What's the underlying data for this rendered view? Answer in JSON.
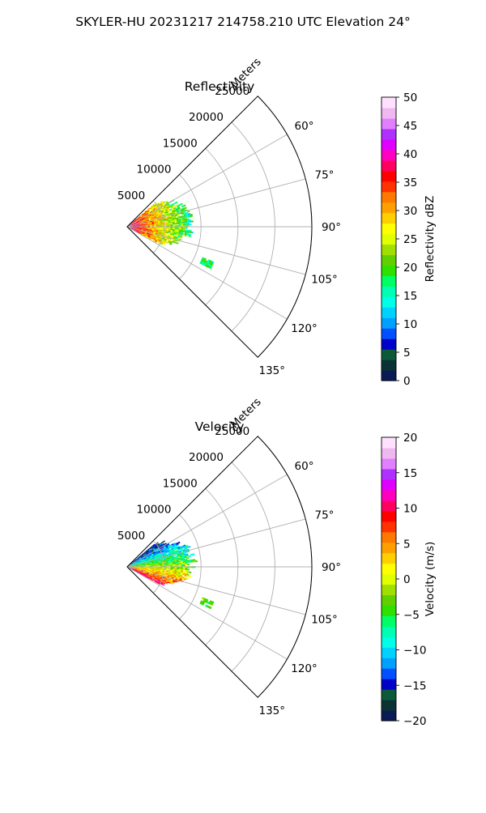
{
  "figure": {
    "suptitle": "SKYLER-HU  20231217  214758.210 UTC Elevation 24°"
  },
  "chart_data": [
    {
      "type": "heatmap",
      "projection": "polar-sector",
      "title": "Reflectivity",
      "radial_label": "Meters",
      "radial_ticks": [
        5000,
        10000,
        15000,
        20000,
        25000
      ],
      "radial_tick_labels": [
        "5000",
        "10000",
        "15000",
        "20000",
        "25000"
      ],
      "rlim": [
        0,
        25000
      ],
      "angle_ticks": [
        60,
        75,
        90,
        105,
        120,
        135
      ],
      "angle_tick_labels": [
        "60°",
        "75°",
        "90°",
        "105°",
        "120°",
        "135°"
      ],
      "angle_range": [
        45,
        135
      ],
      "grid": true,
      "colorbar": {
        "label": "Reflectivity dBZ",
        "range": [
          0,
          50
        ],
        "ticks": [
          0,
          5,
          10,
          15,
          20,
          25,
          30,
          35,
          40,
          45,
          50
        ],
        "tick_labels": [
          "0",
          "5",
          "10",
          "15",
          "20",
          "25",
          "30",
          "35",
          "40",
          "45",
          "50"
        ],
        "colors": [
          "#0a1a55",
          "#0b3333",
          "#0d5a3a",
          "#0000c8",
          "#0050ff",
          "#00a0ff",
          "#00d2ff",
          "#00ffe6",
          "#00ffb4",
          "#00ff64",
          "#30e000",
          "#60d000",
          "#a0e000",
          "#e0ff00",
          "#ffff00",
          "#ffd000",
          "#ffa000",
          "#ff7800",
          "#ff3200",
          "#ff0000",
          "#ff0060",
          "#ff00c0",
          "#e000ff",
          "#b030ff",
          "#e080ff",
          "#f0b8f0",
          "#ffe0ff"
        ]
      },
      "echo": {
        "angle_range": [
          50,
          118
        ],
        "range_m": [
          0,
          9500
        ],
        "outlier_range_m": [
          11000,
          12500
        ],
        "outlier_angles": [
          112,
          116
        ]
      }
    },
    {
      "type": "heatmap",
      "projection": "polar-sector",
      "title": "Velocity",
      "radial_label": "Meters",
      "radial_ticks": [
        5000,
        10000,
        15000,
        20000,
        25000
      ],
      "radial_tick_labels": [
        "5000",
        "10000",
        "15000",
        "20000",
        "25000"
      ],
      "rlim": [
        0,
        25000
      ],
      "angle_ticks": [
        60,
        75,
        90,
        105,
        120,
        135
      ],
      "angle_tick_labels": [
        "60°",
        "75°",
        "90°",
        "105°",
        "120°",
        "135°"
      ],
      "angle_range": [
        45,
        135
      ],
      "grid": true,
      "colorbar": {
        "label": "Velocity (m/s)",
        "range": [
          -20,
          20
        ],
        "ticks": [
          -20,
          -15,
          -10,
          -5,
          0,
          5,
          10,
          15,
          20
        ],
        "tick_labels": [
          "−20",
          "−15",
          "−10",
          "−5",
          "0",
          "5",
          "10",
          "15",
          "20"
        ],
        "colors": [
          "#0a1a55",
          "#0b3333",
          "#0d5a3a",
          "#0000c8",
          "#0050ff",
          "#00a0ff",
          "#00d2ff",
          "#00ffe6",
          "#00ffb4",
          "#00ff64",
          "#30e000",
          "#60d000",
          "#a0e000",
          "#e0ff00",
          "#ffff00",
          "#ffd000",
          "#ffa000",
          "#ff7800",
          "#ff3200",
          "#ff0000",
          "#ff0060",
          "#ff00c0",
          "#e000ff",
          "#b030ff",
          "#e080ff",
          "#f0b8f0",
          "#ffe0ff"
        ]
      },
      "echo": {
        "angle_range": [
          50,
          118
        ],
        "range_m": [
          0,
          9500
        ],
        "outlier_range_m": [
          11000,
          12500
        ],
        "outlier_angles": [
          112,
          116
        ]
      }
    }
  ]
}
